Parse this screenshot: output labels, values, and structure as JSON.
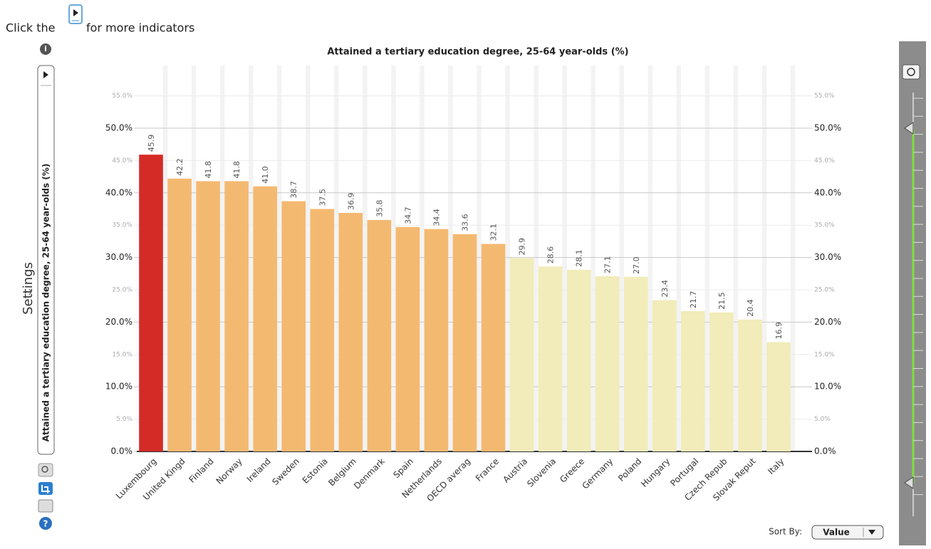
{
  "ui": {
    "hint_before": "Click the",
    "hint_after": "for more indicators",
    "settings": "Settings",
    "indicator": "Attained a tertiary education degree, 25-64 year-olds (%)",
    "sort_label": "Sort By:",
    "sort_value": "Value"
  },
  "chart_data": {
    "type": "bar",
    "title": "Attained a tertiary education degree, 25-64 year-olds (%)",
    "categories": [
      "Luxembourg",
      "United Kingd",
      "Finland",
      "Norway",
      "Ireland",
      "Sweden",
      "Estonia",
      "Belgium",
      "Denmark",
      "Spain",
      "Netherlands",
      "OECD averag",
      "France",
      "Austria",
      "Slovenia",
      "Greece",
      "Germany",
      "Poland",
      "Hungary",
      "Portugal",
      "Czech Repub",
      "Slovak Reput",
      "Italy"
    ],
    "values": [
      45.9,
      42.2,
      41.8,
      41.8,
      41.0,
      38.7,
      37.5,
      36.9,
      35.8,
      34.7,
      34.4,
      33.6,
      32.1,
      29.9,
      28.6,
      28.1,
      27.1,
      27.0,
      23.4,
      21.7,
      21.5,
      20.4,
      16.9
    ],
    "value_labels": [
      "45.9",
      "42.2",
      "41.8",
      "41.8",
      "41.0",
      "38.7",
      "37.5",
      "36.9",
      "35.8",
      "34.7",
      "34.4",
      "33.6",
      "32.1",
      "29.9",
      "28.6",
      "28.1",
      "27.1",
      "27.0",
      "23.4",
      "21.7",
      "21.5",
      "20.4",
      "16.9"
    ],
    "colors": [
      "#d52b26",
      "#f4b971",
      "#f4b971",
      "#f4b971",
      "#f4b971",
      "#f4b971",
      "#f4b971",
      "#f4b971",
      "#f4b971",
      "#f4b971",
      "#f4b971",
      "#f4b971",
      "#f4b971",
      "#f1ecb9",
      "#f1ecb9",
      "#f1ecb9",
      "#f1ecb9",
      "#f1ecb9",
      "#f1ecb9",
      "#f1ecb9",
      "#f1ecb9",
      "#f1ecb9",
      "#f1ecb9"
    ],
    "ylim": [
      0,
      55
    ],
    "yticks": [
      {
        "value": 0,
        "label": "0.0%"
      },
      {
        "value": 5,
        "label": "5.0%"
      },
      {
        "value": 10,
        "label": "10.0%"
      },
      {
        "value": 15,
        "label": "15.0%"
      },
      {
        "value": 20,
        "label": "20.0%"
      },
      {
        "value": 25,
        "label": "25.0%"
      },
      {
        "value": 30,
        "label": "30.0%"
      },
      {
        "value": 35,
        "label": "35.0%"
      },
      {
        "value": 40,
        "label": "40.0%"
      },
      {
        "value": 45,
        "label": "45.0%"
      },
      {
        "value": 50,
        "label": "50.0%"
      },
      {
        "value": 55,
        "label": "55.0%"
      }
    ],
    "grid": true
  }
}
